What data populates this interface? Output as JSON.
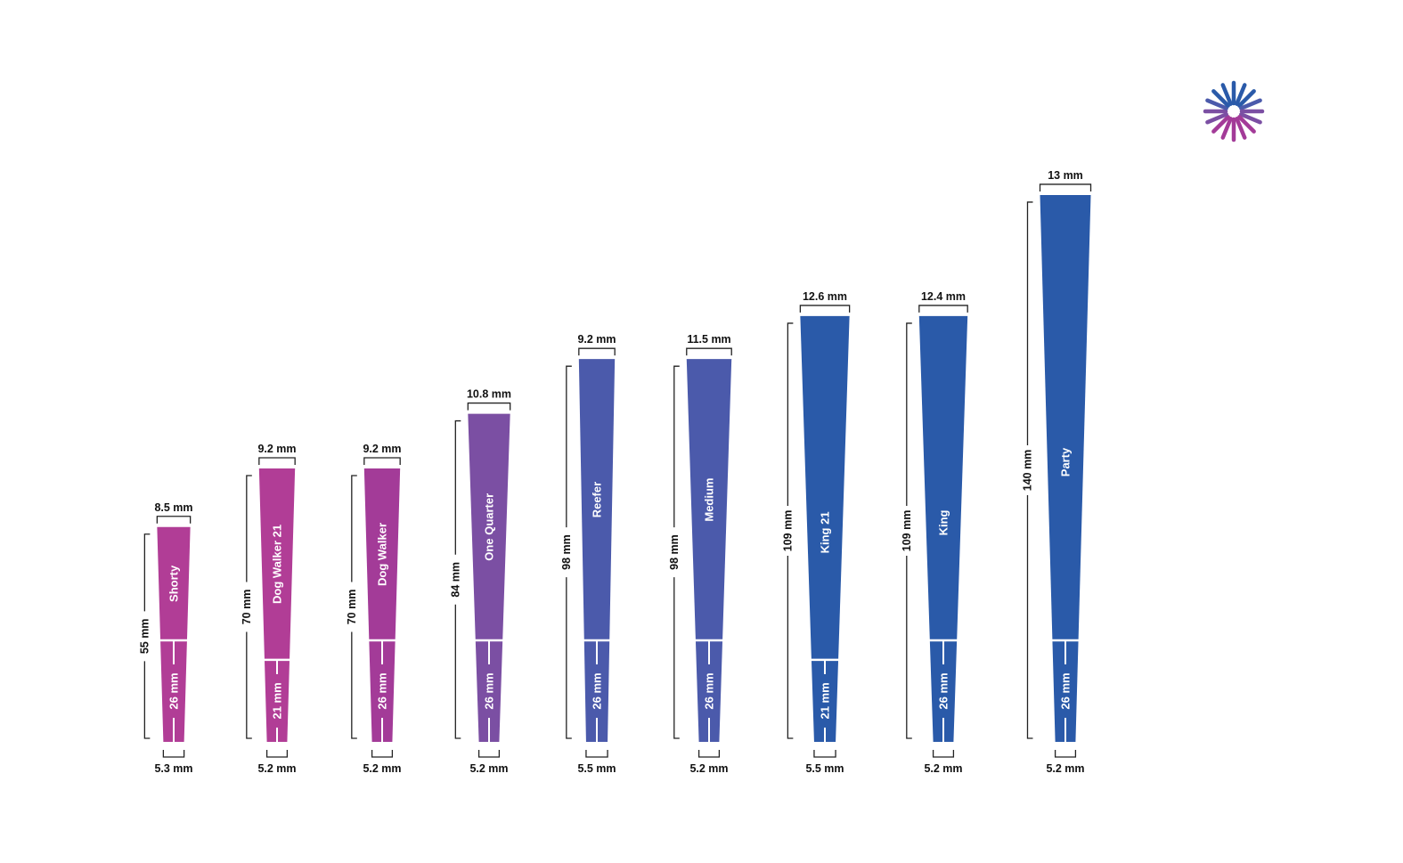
{
  "logo": {
    "name": "starburst-logo",
    "colors": [
      "#2a5aa9",
      "#4b5aab",
      "#7b4fa3",
      "#a33b98"
    ]
  },
  "unit": "mm",
  "cones": [
    {
      "name": "Shorty",
      "length": "55 mm",
      "length_mm": 55,
      "top": "8.5 mm",
      "top_mm": 8.5,
      "tip": "5.3 mm",
      "tip_mm": 5.3,
      "filter": "26 mm",
      "filter_mm": 26,
      "color": "#b13d96"
    },
    {
      "name": "Dog Walker 21",
      "length": "70 mm",
      "length_mm": 70,
      "top": "9.2 mm",
      "top_mm": 9.2,
      "tip": "5.2 mm",
      "tip_mm": 5.2,
      "filter": "21 mm",
      "filter_mm": 21,
      "color": "#b13d96"
    },
    {
      "name": "Dog Walker",
      "length": "70 mm",
      "length_mm": 70,
      "top": "9.2 mm",
      "top_mm": 9.2,
      "tip": "5.2 mm",
      "tip_mm": 5.2,
      "filter": "26 mm",
      "filter_mm": 26,
      "color": "#a33b98"
    },
    {
      "name": "One Quarter",
      "length": "84 mm",
      "length_mm": 84,
      "top": "10.8 mm",
      "top_mm": 10.8,
      "tip": "5.2 mm",
      "tip_mm": 5.2,
      "filter": "26 mm",
      "filter_mm": 26,
      "color": "#7b4fa3"
    },
    {
      "name": "Reefer",
      "length": "98 mm",
      "length_mm": 98,
      "top": "9.2 mm",
      "top_mm": 9.2,
      "tip": "5.5 mm",
      "tip_mm": 5.5,
      "filter": "26 mm",
      "filter_mm": 26,
      "color": "#4b5aab"
    },
    {
      "name": "Medium",
      "length": "98 mm",
      "length_mm": 98,
      "top": "11.5 mm",
      "top_mm": 11.5,
      "tip": "5.2 mm",
      "tip_mm": 5.2,
      "filter": "26 mm",
      "filter_mm": 26,
      "color": "#4b5aab"
    },
    {
      "name": "King 21",
      "length": "109 mm",
      "length_mm": 109,
      "top": "12.6 mm",
      "top_mm": 12.6,
      "tip": "5.5 mm",
      "tip_mm": 5.5,
      "filter": "21 mm",
      "filter_mm": 21,
      "color": "#2a5aa9"
    },
    {
      "name": "King",
      "length": "109 mm",
      "length_mm": 109,
      "top": "12.4 mm",
      "top_mm": 12.4,
      "tip": "5.2 mm",
      "tip_mm": 5.2,
      "filter": "26 mm",
      "filter_mm": 26,
      "color": "#2a5aa9"
    },
    {
      "name": "Party",
      "length": "140 mm",
      "length_mm": 140,
      "top": "13 mm",
      "top_mm": 13,
      "tip": "5.2 mm",
      "tip_mm": 5.2,
      "filter": "26 mm",
      "filter_mm": 26,
      "color": "#2a5aa9"
    }
  ]
}
